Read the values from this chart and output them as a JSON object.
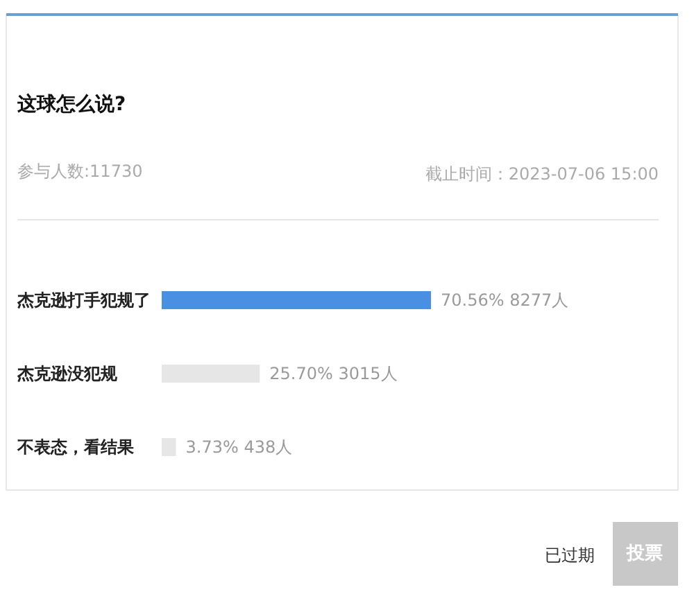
{
  "chart_data": {
    "type": "bar",
    "orientation": "horizontal",
    "title": "这球怎么说?",
    "categories": [
      "杰克逊打手犯规了",
      "杰克逊没犯规",
      "不表态，看结果"
    ],
    "values": [
      70.56,
      25.7,
      3.73
    ],
    "colors": [
      "#4a90e2",
      "#e6e6e6",
      "#e6e6e6"
    ],
    "value_labels": [
      "70.56%  8277人",
      "25.70%  3015人",
      "3.73%  438人"
    ],
    "annotations": [
      "参与人数:11730",
      "截止时间：2023-07-06 15:00",
      "已过期",
      "投票"
    ]
  }
}
